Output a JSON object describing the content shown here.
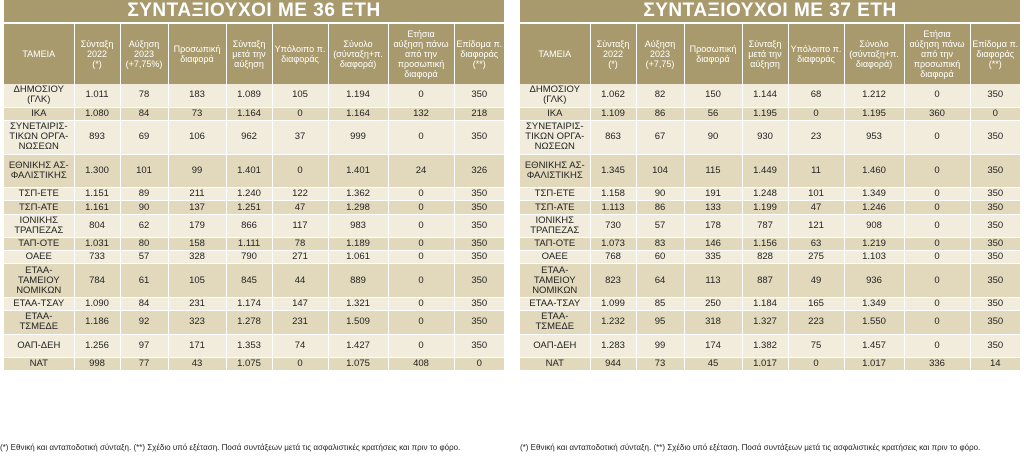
{
  "left": {
    "title": "ΣΥΝΤΑΞΙΟΥΧΟΙ ΜΕ 36 ΕΤΗ",
    "headers": [
      "ΤΑΜΕΙΑ",
      "Σύνταξη\n2022\n(*)",
      "Αύξηση\n2023\n(+7,75%)",
      "Προσωπική\nδιαφορά",
      "Σύνταξη\nμετά την\nαύξηση",
      "Υπόλοιπο π.\nδιαφοράς",
      "Σύνολο\n(σύνταξη+π.\nδιαφορά)",
      "Ετήσια\nαύξηση πάνω\nαπό την\nπροσωπική\nδιαφορά",
      "Επίδομα π.\nδιαφοράς\n(**)"
    ],
    "rows": [
      {
        "cells": [
          "ΔΗΜΟΣΙΟΥ\n(ΓΛΚ)",
          "1.011",
          "78",
          "183",
          "1.089",
          "105",
          "1.194",
          "0",
          "350"
        ],
        "h": 2
      },
      {
        "cells": [
          "ΙΚΑ",
          "1.080",
          "84",
          "73",
          "1.164",
          "0",
          "1.164",
          "132",
          "218"
        ],
        "h": 1
      },
      {
        "cells": [
          "ΣΥΝΕΤΑΙΡΙΣ-\nΤΙΚΩΝ ΟΡΓΑ-\nΝΩΣΕΩΝ",
          "893",
          "69",
          "106",
          "962",
          "37",
          "999",
          "0",
          "350"
        ],
        "h": 3
      },
      {
        "cells": [
          "ΕΘΝΙΚΗΣ ΑΣ-\nΦΑΛΙΣΤΙΚΗΣ",
          "1.300",
          "101",
          "99",
          "1.401",
          "0",
          "1.401",
          "24",
          "326"
        ],
        "h": 3
      },
      {
        "cells": [
          "ΤΣΠ-ΕΤΕ",
          "1.151",
          "89",
          "211",
          "1.240",
          "122",
          "1.362",
          "0",
          "350"
        ],
        "h": 1
      },
      {
        "cells": [
          "ΤΣΠ-ΑΤΕ",
          "1.161",
          "90",
          "137",
          "1.251",
          "47",
          "1.298",
          "0",
          "350"
        ],
        "h": 1
      },
      {
        "cells": [
          "ΙΟΝΙΚΗΣ\nΤΡΑΠΕΖΑΣ",
          "804",
          "62",
          "179",
          "866",
          "117",
          "983",
          "0",
          "350"
        ],
        "h": 2
      },
      {
        "cells": [
          "ΤΑΠ-ΟΤΕ",
          "1.031",
          "80",
          "158",
          "1.111",
          "78",
          "1.189",
          "0",
          "350"
        ],
        "h": 1
      },
      {
        "cells": [
          "ΟΑΕΕ",
          "733",
          "57",
          "328",
          "790",
          "271",
          "1.061",
          "0",
          "350"
        ],
        "h": 1
      },
      {
        "cells": [
          "ΕΤΑΑ-\nΤΑΜΕΙΟΥ\nΝΟΜΙΚΩΝ",
          "784",
          "61",
          "105",
          "845",
          "44",
          "889",
          "0",
          "350"
        ],
        "h": 3
      },
      {
        "cells": [
          "ΕΤΑΑ-ΤΣΑΥ",
          "1.090",
          "84",
          "231",
          "1.174",
          "147",
          "1.321",
          "0",
          "350"
        ],
        "h": 1
      },
      {
        "cells": [
          "ΕΤΑΑ-\nΤΣΜΕΔΕ",
          "1.186",
          "92",
          "323",
          "1.278",
          "231",
          "1.509",
          "0",
          "350"
        ],
        "h": 2
      },
      {
        "cells": [
          "ΟΑΠ-ΔΕΗ",
          "1.256",
          "97",
          "171",
          "1.353",
          "74",
          "1.427",
          "0",
          "350"
        ],
        "h": 2
      },
      {
        "cells": [
          "ΝΑΤ",
          "998",
          "77",
          "43",
          "1.075",
          "0",
          "1.075",
          "408",
          "0"
        ],
        "h": 1
      }
    ]
  },
  "right": {
    "title": "ΣΥΝΤΑΞΙΟΥΧΟΙ ΜΕ 37 ΕΤΗ",
    "headers": [
      "ΤΑΜΕΙΑ",
      "Σύνταξη\n2022\n(*)",
      "Αύξηση\n2023\n(+7,75)",
      "Προσωπική\nδιαφορά",
      "Σύνταξη\nμετά την\nαύξηση",
      "Υπόλοιπο π.\nδιαφοράς",
      "Σύνολο\n(σύνταξη+π.\nδιαφορά)",
      "Ετήσια\nαύξηση πάνω\nαπό την\nπροσωπική\nδιαφορά",
      "Επίδομα π.\nδιαφοράς\n(**)"
    ],
    "rows": [
      {
        "cells": [
          "ΔΗΜΟΣΙΟΥ\n(ΓΛΚ)",
          "1.062",
          "82",
          "150",
          "1.144",
          "68",
          "1.212",
          "0",
          "350"
        ],
        "h": 2
      },
      {
        "cells": [
          "ΙΚΑ",
          "1.109",
          "86",
          "56",
          "1.195",
          "0",
          "1.195",
          "360",
          "0"
        ],
        "h": 1
      },
      {
        "cells": [
          "ΣΥΝΕΤΑΙΡΙΣ-\nΤΙΚΩΝ ΟΡΓΑ-\nΝΩΣΕΩΝ",
          "863",
          "67",
          "90",
          "930",
          "23",
          "953",
          "0",
          "350"
        ],
        "h": 3
      },
      {
        "cells": [
          "ΕΘΝΙΚΗΣ ΑΣ-\nΦΑΛΙΣΤΙΚΗΣ",
          "1.345",
          "104",
          "115",
          "1.449",
          "11",
          "1.460",
          "0",
          "350"
        ],
        "h": 3
      },
      {
        "cells": [
          "ΤΣΠ-ΕΤΕ",
          "1.158",
          "90",
          "191",
          "1.248",
          "101",
          "1.349",
          "0",
          "350"
        ],
        "h": 1
      },
      {
        "cells": [
          "ΤΣΠ-ΑΤΕ",
          "1.113",
          "86",
          "133",
          "1.199",
          "47",
          "1.246",
          "0",
          "350"
        ],
        "h": 1
      },
      {
        "cells": [
          "ΙΟΝΙΚΗΣ\nΤΡΑΠΕΖΑΣ",
          "730",
          "57",
          "178",
          "787",
          "121",
          "908",
          "0",
          "350"
        ],
        "h": 2
      },
      {
        "cells": [
          "ΤΑΠ-ΟΤΕ",
          "1.073",
          "83",
          "146",
          "1.156",
          "63",
          "1.219",
          "0",
          "350"
        ],
        "h": 1
      },
      {
        "cells": [
          "ΟΑΕΕ",
          "768",
          "60",
          "335",
          "828",
          "275",
          "1.103",
          "0",
          "350"
        ],
        "h": 1
      },
      {
        "cells": [
          "ΕΤΑΑ-\nΤΑΜΕΙΟΥ\nΝΟΜΙΚΩΝ",
          "823",
          "64",
          "113",
          "887",
          "49",
          "936",
          "0",
          "350"
        ],
        "h": 3
      },
      {
        "cells": [
          "ΕΤΑΑ-ΤΣΑΥ",
          "1.099",
          "85",
          "250",
          "1.184",
          "165",
          "1.349",
          "0",
          "350"
        ],
        "h": 1
      },
      {
        "cells": [
          "ΕΤΑΑ-\nΤΣΜΕΔΕ",
          "1.232",
          "95",
          "318",
          "1.327",
          "223",
          "1.550",
          "0",
          "350"
        ],
        "h": 2
      },
      {
        "cells": [
          "ΟΑΠ-ΔΕΗ",
          "1.283",
          "99",
          "174",
          "1.382",
          "75",
          "1.457",
          "0",
          "350"
        ],
        "h": 2
      },
      {
        "cells": [
          "ΝΑΤ",
          "944",
          "73",
          "45",
          "1.017",
          "0",
          "1.017",
          "336",
          "14"
        ],
        "h": 1
      }
    ]
  },
  "footnote_left": "(*) Εθνική και ανταποδοτική σύνταξη. (**) Σχέδιο υπό εξέταση. Ποσά συντάξεων μετά τις ασφαλιστικές κρατήσεις και πριν το φόρο.",
  "footnote_right": "(*) Εθνική και ανταποδοτική σύνταξη. (**) Σχέδιο υπό εξέταση. Ποσά συντάξεων μετά τις ασφαλιστικές κρατήσεις και πριν το φόρο."
}
